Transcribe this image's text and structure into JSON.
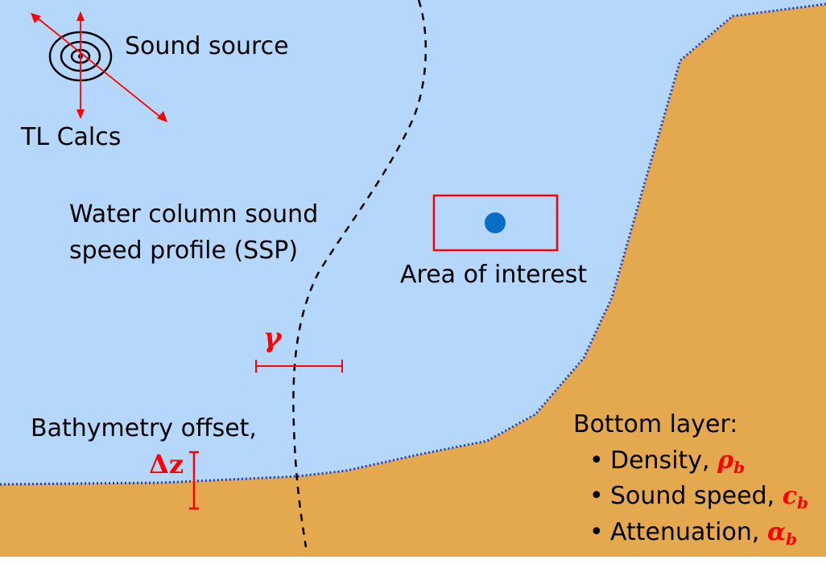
{
  "labels": {
    "sound_source": "Sound source",
    "tl_calcs": "TL Calcs",
    "ssp_line1": "Water column sound",
    "ssp_line2": "speed profile (SSP)",
    "area_of_interest": "Area of interest",
    "bathy_offset": "Bathymetry offset,",
    "bottom_layer": "Bottom layer:"
  },
  "symbols": {
    "gamma": "γ",
    "delta_z": "Δz"
  },
  "bottom_params": [
    {
      "label": "Density, ",
      "symbol": "ρ",
      "sub": "b"
    },
    {
      "label": "Sound speed, ",
      "symbol": "c",
      "sub": "b"
    },
    {
      "label": "Attenuation, ",
      "symbol": "α",
      "sub": "b"
    }
  ],
  "colors": {
    "water": "#b4d7fb",
    "seabed": "#e4a84e",
    "annotation": "#ff0000",
    "seafloor_line": "#1f3fd0",
    "point": "#0a6fc4"
  }
}
